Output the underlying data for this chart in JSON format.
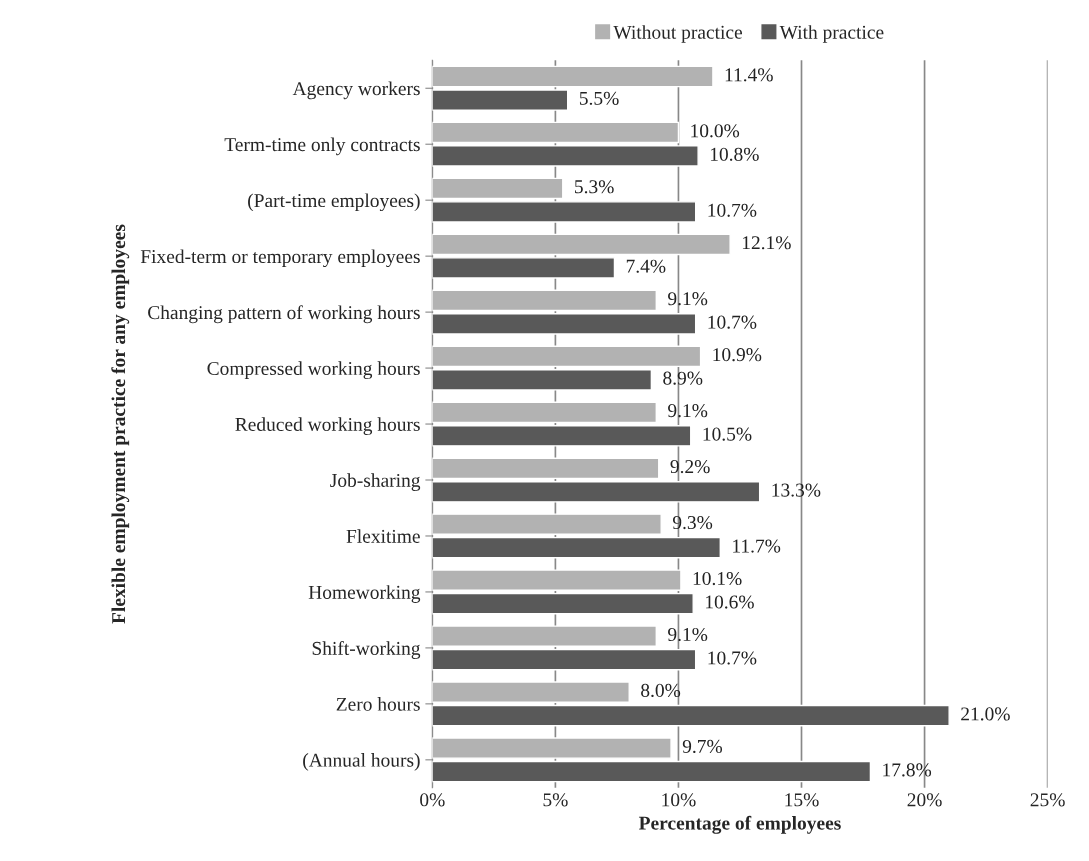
{
  "chart_data": {
    "type": "bar",
    "orientation": "horizontal",
    "xlabel": "Percentage of employees",
    "ylabel": "Flexible employment practice for any employees",
    "categories": [
      "Agency workers",
      "Term-time only contracts",
      "(Part-time employees)",
      "Fixed-term or temporary employees",
      "Changing pattern of working hours",
      "Compressed working hours",
      "Reduced working hours",
      "Job-sharing",
      "Flexitime",
      "Homeworking",
      "Shift-working",
      "Zero hours",
      "(Annual hours)"
    ],
    "series": [
      {
        "name": "Without practice",
        "color": "#b2b2b2",
        "values": [
          11.4,
          10.0,
          5.3,
          12.1,
          9.1,
          10.9,
          9.1,
          9.2,
          9.3,
          10.1,
          9.1,
          8.0,
          9.7
        ],
        "value_labels": [
          "11.4%",
          "10.0%",
          "5.3%",
          "12.1%",
          "9.1%",
          "10.9%",
          "9.1%",
          "9.2%",
          "9.3%",
          "10.1%",
          "9.1%",
          "8.0%",
          "9.7%"
        ]
      },
      {
        "name": "With practice",
        "color": "#595959",
        "values": [
          5.5,
          10.8,
          10.7,
          7.4,
          10.7,
          8.9,
          10.5,
          13.3,
          11.7,
          10.6,
          10.7,
          21.0,
          17.8
        ],
        "value_labels": [
          "5.5%",
          "10.8%",
          "10.7%",
          "7.4%",
          "10.7%",
          "8.9%",
          "10.5%",
          "13.3%",
          "11.7%",
          "10.6%",
          "10.7%",
          "21.0%",
          "17.8%"
        ]
      }
    ],
    "xlim": [
      0,
      25
    ],
    "xticks": [
      {
        "value": 0,
        "label": "0%"
      },
      {
        "value": 5,
        "label": "5%"
      },
      {
        "value": 10,
        "label": "10%"
      },
      {
        "value": 15,
        "label": "15%"
      },
      {
        "value": 20,
        "label": "20%"
      },
      {
        "value": 25,
        "label": "25%"
      }
    ],
    "grid": "x",
    "legend": "top"
  }
}
